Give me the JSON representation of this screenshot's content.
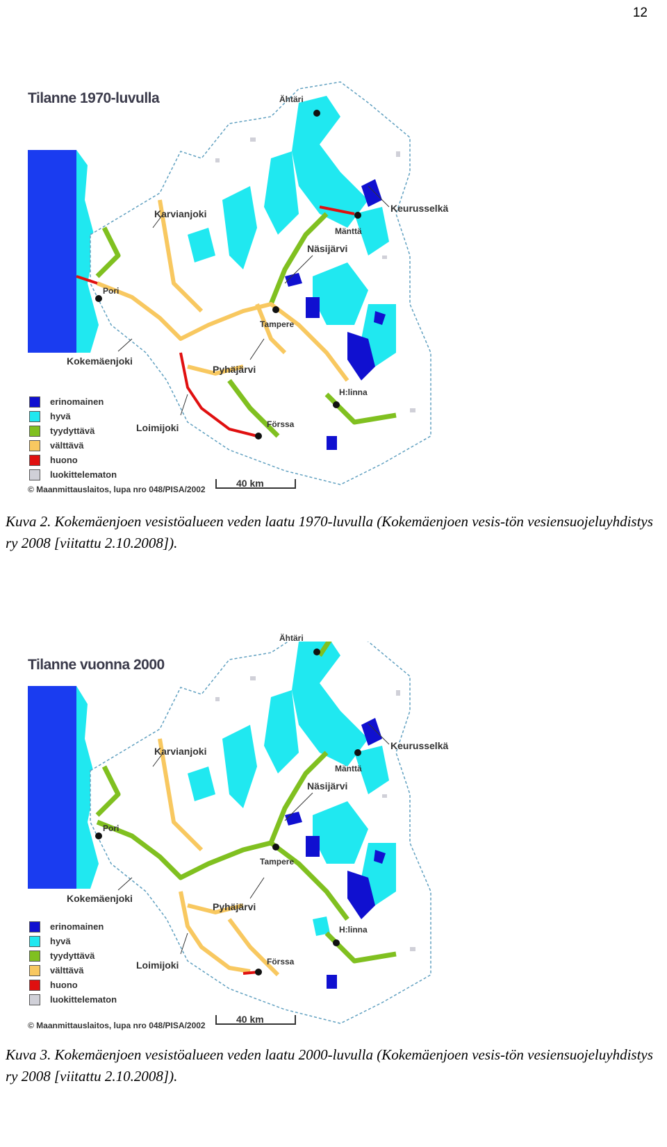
{
  "page_number": "12",
  "colors": {
    "erinomainen": "#1010d0",
    "hyva": "#20e8f0",
    "tyydyttava": "#80c020",
    "valttava": "#f8c860",
    "huono": "#e01010",
    "luokittelematon": "#d0d0d8",
    "sea_deep": "#1a3cf0",
    "sea_shallow": "#20e8f0"
  },
  "legend": [
    {
      "label": "erinomainen",
      "color": "#1010d0"
    },
    {
      "label": "hyvä",
      "color": "#20e8f0"
    },
    {
      "label": "tyydyttävä",
      "color": "#80c020"
    },
    {
      "label": "välttävä",
      "color": "#f8c860"
    },
    {
      "label": "huono",
      "color": "#e01010"
    },
    {
      "label": "luokittelematon",
      "color": "#d0d0d8"
    }
  ],
  "places": {
    "ahtari": "Ähtäri",
    "keurusselka": "Keurusselkä",
    "mantta": "Mänttä",
    "karvianjoki": "Karvianjoki",
    "nasijarvi": "Näsijärvi",
    "pori": "Pori",
    "tampere": "Tampere",
    "kokemaenjoki": "Kokemäenjoki",
    "pyhajarvi": "Pyhäjärvi",
    "hlinna": "H:linna",
    "loimijoki": "Loimijoki",
    "forssa": "Förssa"
  },
  "copyright": "© Maanmittauslaitos, lupa nro 048/PISA/2002",
  "scale": "40 km",
  "map1": {
    "title": "Tilanne 1970-luvulla",
    "caption": "Kuva 2. Kokemäenjoen vesistöalueen veden laatu 1970-luvulla (Kokemäenjoen vesis-tön vesiensuojeluyhdistys ry 2008 [viitattu 2.10.2008])."
  },
  "map2": {
    "title": "Tilanne vuonna 2000",
    "caption": "Kuva 3. Kokemäenjoen vesistöalueen veden laatu 2000-luvulla (Kokemäenjoen vesis-tön vesiensuojeluyhdistys ry 2008 [viitattu 2.10.2008])."
  }
}
